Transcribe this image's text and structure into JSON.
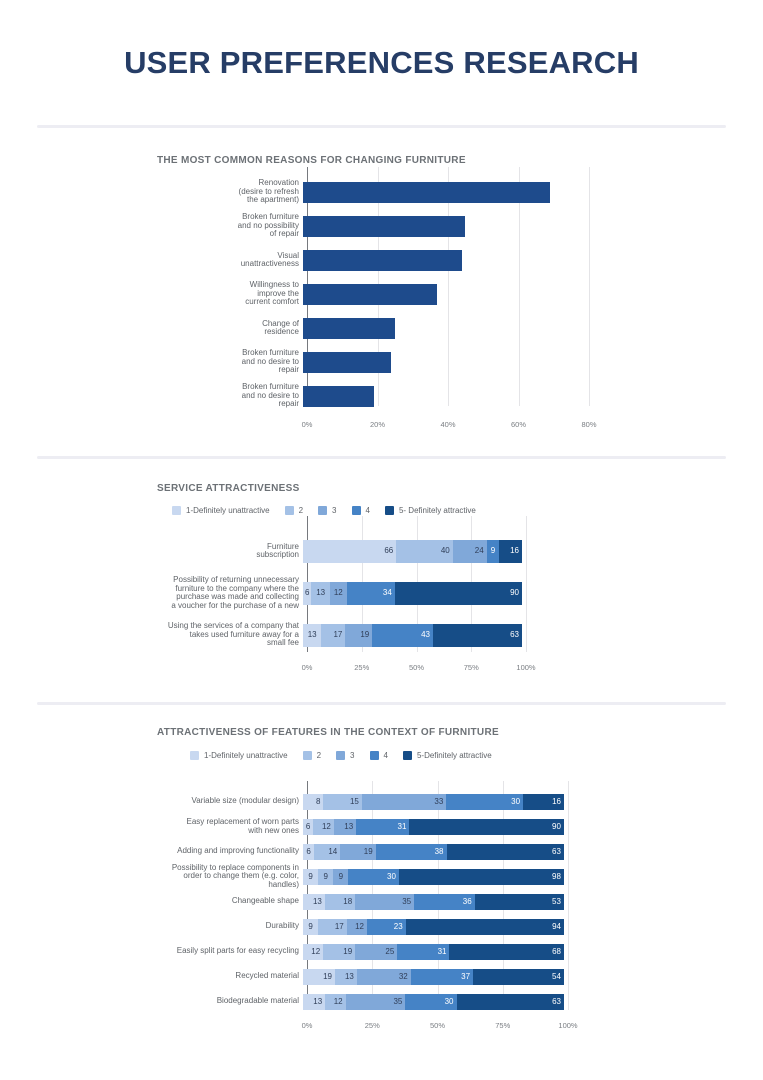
{
  "page": {
    "title": "USER PREFERENCES RESEARCH"
  },
  "palette": {
    "title_color": "#263d66",
    "section_title_color": "#6c7176",
    "bar_navy": "#1e4b8c",
    "scale_colors": [
      "#c8d8f0",
      "#a4c1e6",
      "#80a8d9",
      "#4583c6",
      "#164d87"
    ],
    "segment_label_dark": "#2f3e58",
    "segment_label_light": "#ffffff",
    "grid_color": "#e4e4e7",
    "zero_line_color": "#76797e",
    "divider_color": "#ededf3",
    "text_gray": "#5f6368"
  },
  "chart_data": [
    {
      "id": "reasons-for-changing-furniture",
      "type": "bar",
      "title": "THE MOST COMMON REASONS FOR CHANGING FURNITURE",
      "orientation": "horizontal",
      "grid": true,
      "categories": [
        [
          "Renovation",
          "(desire to refresh",
          "the apartment)"
        ],
        [
          "Broken furniture",
          "and no possibility",
          "of repair"
        ],
        [
          "Visual",
          "unattractiveness"
        ],
        [
          "Willingness to",
          "improve the",
          "current comfort"
        ],
        [
          "Change of",
          "residence"
        ],
        [
          "Broken furniture",
          "and no desire to",
          "repair"
        ],
        [
          "Broken furniture",
          "and no desire to",
          "repair"
        ]
      ],
      "values": [
        70,
        46,
        45,
        38,
        26,
        25,
        20
      ],
      "xlabel": "",
      "ylabel": "",
      "xlim": [
        0,
        80
      ],
      "x_ticks": [
        {
          "v": 0,
          "label": "0%"
        },
        {
          "v": 20,
          "label": "20%"
        },
        {
          "v": 40,
          "label": "40%"
        },
        {
          "v": 60,
          "label": "60%"
        },
        {
          "v": 80,
          "label": "80%"
        }
      ]
    },
    {
      "id": "service-attractiveness",
      "type": "bar",
      "subtype": "stacked-horizontal-normalized",
      "title": "SERVICE ATTRACTIVENESS",
      "grid": true,
      "legend_position": "top",
      "legend": [
        "1-Definitely unattractive",
        "2",
        "3",
        "4",
        "5- Definitely attractive"
      ],
      "categories": [
        [
          "Furniture",
          "subscription"
        ],
        [
          "Possibility of returning unnecessary",
          "furniture to the company where the",
          "purchase was made and collecting",
          "a voucher for the purchase of a new"
        ],
        [
          "Using the services of a company that",
          "takes used furniture away for a",
          "small fee"
        ]
      ],
      "series": [
        {
          "name": "1-Definitely unattractive",
          "values": [
            66,
            6,
            13
          ]
        },
        {
          "name": "2",
          "values": [
            40,
            13,
            17
          ]
        },
        {
          "name": "3",
          "values": [
            24,
            12,
            19
          ]
        },
        {
          "name": "4",
          "values": [
            9,
            34,
            43
          ]
        },
        {
          "name": "5- Definitely attractive",
          "values": [
            16,
            90,
            63
          ]
        }
      ],
      "xlim": [
        0,
        100
      ],
      "x_ticks": [
        {
          "v": 0,
          "label": "0%"
        },
        {
          "v": 25,
          "label": "25%"
        },
        {
          "v": 50,
          "label": "50%"
        },
        {
          "v": 75,
          "label": "75%"
        },
        {
          "v": 100,
          "label": "100%"
        }
      ]
    },
    {
      "id": "attractiveness-of-features",
      "type": "bar",
      "subtype": "stacked-horizontal-normalized",
      "title": "ATTRACTIVENESS OF FEATURES IN THE CONTEXT OF FURNITURE",
      "grid": true,
      "legend_position": "top",
      "legend": [
        "1-Definitely unattractive",
        "2",
        "3",
        "4",
        "5-Definitely attractive"
      ],
      "categories": [
        [
          "Variable size (modular design)"
        ],
        [
          "Easy replacement of worn parts",
          "with new ones"
        ],
        [
          "Adding and improving functionality"
        ],
        [
          "Possibility to replace components in",
          "order to change them (e.g. color,",
          "handles)"
        ],
        [
          "Changeable shape"
        ],
        [
          "Durability"
        ],
        [
          "Easily split parts for easy recycling"
        ],
        [
          "Recycled material"
        ],
        [
          "Biodegradable material"
        ]
      ],
      "series": [
        {
          "name": "1-Definitely unattractive",
          "values": [
            8,
            6,
            6,
            9,
            13,
            9,
            12,
            19,
            13
          ]
        },
        {
          "name": "2",
          "values": [
            15,
            12,
            14,
            9,
            18,
            17,
            19,
            13,
            12
          ]
        },
        {
          "name": "3",
          "values": [
            33,
            13,
            19,
            9,
            35,
            12,
            25,
            32,
            35
          ]
        },
        {
          "name": "4",
          "values": [
            30,
            31,
            38,
            30,
            36,
            23,
            31,
            37,
            30
          ]
        },
        {
          "name": "5-Definitely attractive",
          "values": [
            16,
            90,
            63,
            98,
            53,
            94,
            68,
            54,
            63
          ]
        }
      ],
      "xlim": [
        0,
        100
      ],
      "x_ticks": [
        {
          "v": 0,
          "label": "0%"
        },
        {
          "v": 25,
          "label": "25%"
        },
        {
          "v": 50,
          "label": "50%"
        },
        {
          "v": 75,
          "label": "75%"
        },
        {
          "v": 100,
          "label": "100%"
        }
      ]
    }
  ]
}
